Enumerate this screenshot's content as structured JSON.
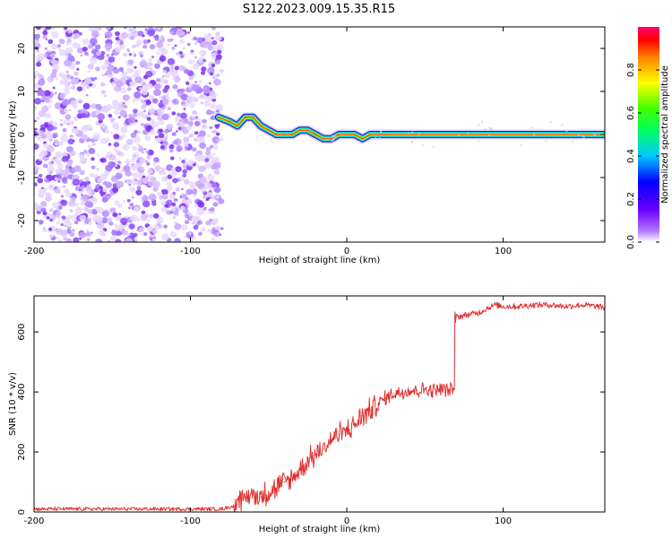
{
  "title": "S122.2023.009.15.35.R15",
  "chart_data": [
    {
      "type": "heatmap",
      "xlabel": "Height of straight line (km)",
      "ylabel": "Frequency (Hz)",
      "xlim": [
        -200,
        165
      ],
      "ylim": [
        -25,
        25
      ],
      "xticks": [
        "-200",
        "-100",
        "0",
        "100"
      ],
      "yticks": [
        "-20",
        "-10",
        "0",
        "10",
        "20"
      ],
      "colorbar": {
        "label": "Normalized spectral amplitude",
        "range": [
          0,
          1
        ],
        "ticks": [
          "0.0",
          "0.2",
          "0.4",
          "0.6",
          "0.8"
        ]
      },
      "noise_region_x": [
        -200,
        -82
      ],
      "ridge": {
        "x": [
          -82,
          -75,
          -70,
          -65,
          -60,
          -55,
          -50,
          -45,
          -40,
          -35,
          -30,
          -25,
          -20,
          -15,
          -10,
          -5,
          0,
          5,
          10,
          15,
          20,
          25,
          165
        ],
        "y": [
          4,
          3,
          2,
          4,
          4,
          2,
          1,
          0,
          0,
          0,
          1,
          1,
          0,
          -1,
          -1,
          0,
          0,
          0,
          -1,
          0,
          0,
          0,
          0
        ]
      },
      "grid": false
    },
    {
      "type": "line",
      "xlabel": "Height of straight line (km)",
      "ylabel": "SNR (10 * v/v)",
      "xlim": [
        -200,
        165
      ],
      "ylim": [
        0,
        720
      ],
      "xticks": [
        "-200",
        "-100",
        "0",
        "100"
      ],
      "yticks": [
        "0",
        "200",
        "400",
        "600"
      ],
      "color": "#e03030",
      "series": [
        {
          "x": [
            -200,
            -80,
            -72,
            -65,
            -60,
            -55,
            -50,
            -45,
            -40,
            -35,
            -30,
            -25,
            -20,
            -15,
            -10,
            -5,
            0,
            5,
            10,
            15,
            20,
            25,
            30,
            35,
            40,
            45,
            50,
            55,
            60,
            65,
            69,
            70,
            75,
            80,
            85,
            90,
            95,
            100,
            110,
            120,
            130,
            140,
            150,
            160,
            165
          ],
          "y": [
            10,
            10,
            20,
            50,
            60,
            50,
            70,
            80,
            100,
            110,
            140,
            170,
            190,
            210,
            240,
            260,
            270,
            290,
            320,
            340,
            360,
            380,
            395,
            400,
            405,
            405,
            410,
            405,
            410,
            405,
            410,
            650,
            655,
            660,
            665,
            680,
            690,
            685,
            685,
            690,
            690,
            685,
            690,
            685,
            680
          ]
        }
      ],
      "grid": false
    }
  ]
}
